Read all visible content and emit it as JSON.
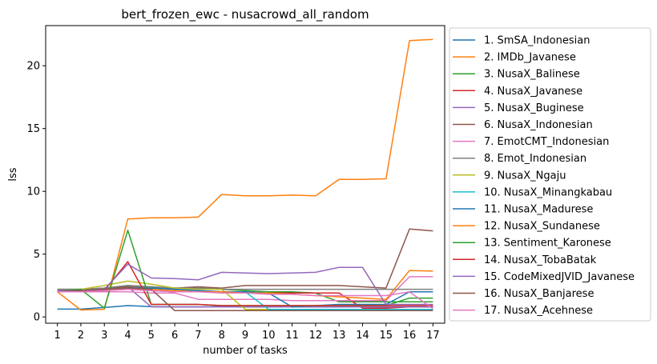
{
  "chart_data": {
    "type": "line",
    "title": "bert_frozen_ewc - nusacrowd_all_random",
    "xlabel": "number of tasks",
    "ylabel": "lss",
    "x": [
      1,
      2,
      3,
      4,
      5,
      6,
      7,
      8,
      9,
      10,
      11,
      12,
      13,
      14,
      15,
      16,
      17
    ],
    "xlim": [
      0.5,
      17.5
    ],
    "ylim": [
      -0.5,
      23.2
    ],
    "yticks": [
      0,
      5,
      10,
      15,
      20
    ],
    "legend_position": "outside-right",
    "series": [
      {
        "name": "1. SmSA_Indonesian",
        "color": "#1f77b4",
        "values": [
          0.62,
          0.62,
          0.75,
          0.9,
          0.82,
          0.8,
          0.8,
          0.82,
          0.8,
          0.8,
          0.82,
          0.8,
          0.8,
          0.82,
          0.8,
          0.8,
          0.8
        ]
      },
      {
        "name": "2. IMDb_Javanese",
        "color": "#ff7f0e",
        "values": [
          2.0,
          0.55,
          0.6,
          7.8,
          7.9,
          7.9,
          7.95,
          9.75,
          9.65,
          9.65,
          9.7,
          9.65,
          10.95,
          10.95,
          11.0,
          22.0,
          22.1
        ]
      },
      {
        "name": "3. NusaX_Balinese",
        "color": "#2ca02c",
        "values": [
          2.1,
          2.2,
          2.3,
          2.5,
          2.4,
          2.3,
          2.3,
          2.2,
          2.1,
          2.0,
          2.0,
          1.9,
          1.2,
          1.2,
          1.2,
          1.2,
          1.2
        ]
      },
      {
        "name": "4. NusaX_Javanese",
        "color": "#d62728",
        "values": [
          2.0,
          2.0,
          2.1,
          2.2,
          2.1,
          2.0,
          2.0,
          2.0,
          1.9,
          1.9,
          1.9,
          1.9,
          1.9,
          0.7,
          0.7,
          0.8,
          0.8
        ]
      },
      {
        "name": "5. NusaX_Buginese",
        "color": "#9467bd",
        "values": [
          2.1,
          2.1,
          2.2,
          2.4,
          0.8,
          0.8,
          0.8,
          0.8,
          0.8,
          0.8,
          0.8,
          0.8,
          0.8,
          0.8,
          0.8,
          0.8,
          0.8
        ]
      },
      {
        "name": "6. NusaX_Indonesian",
        "color": "#8c564b",
        "values": [
          2.2,
          2.2,
          2.3,
          2.4,
          2.3,
          2.3,
          2.4,
          2.3,
          2.5,
          2.5,
          2.5,
          2.5,
          2.5,
          2.4,
          2.3,
          7.0,
          6.85
        ]
      },
      {
        "name": "7. EmotCMT_Indonesian",
        "color": "#e377c2",
        "values": [
          2.0,
          2.0,
          2.0,
          2.0,
          1.9,
          1.9,
          1.4,
          1.4,
          1.4,
          1.4,
          1.3,
          1.3,
          1.3,
          1.3,
          1.3,
          3.2,
          3.2
        ]
      },
      {
        "name": "8. Emot_Indonesian",
        "color": "#7f7f7f",
        "values": [
          2.2,
          2.2,
          2.3,
          2.5,
          2.4,
          2.3,
          2.3,
          2.2,
          2.2,
          2.2,
          2.2,
          2.2,
          2.2,
          2.2,
          2.2,
          2.2,
          2.2
        ]
      },
      {
        "name": "9. NusaX_Ngaju",
        "color": "#bcbd22",
        "values": [
          2.1,
          2.2,
          2.5,
          2.85,
          2.6,
          2.3,
          2.2,
          2.2,
          0.6,
          0.6,
          0.6,
          0.6,
          0.6,
          0.6,
          0.6,
          0.6,
          0.6
        ]
      },
      {
        "name": "10. NusaX_Minangkabau",
        "color": "#17becf",
        "values": [
          2.0,
          2.1,
          2.2,
          2.3,
          2.3,
          2.2,
          2.1,
          2.0,
          2.0,
          0.6,
          0.6,
          0.6,
          0.6,
          0.6,
          0.6,
          0.6,
          0.6
        ]
      },
      {
        "name": "11. NusaX_Madurese",
        "color": "#1f77b4",
        "values": [
          2.0,
          2.1,
          2.2,
          2.3,
          2.3,
          2.2,
          2.1,
          2.0,
          2.0,
          1.9,
          0.8,
          0.9,
          1.0,
          1.0,
          1.0,
          2.0,
          2.0
        ]
      },
      {
        "name": "12. NusaX_Sundanese",
        "color": "#ff7f0e",
        "values": [
          2.0,
          2.1,
          2.2,
          2.3,
          2.2,
          2.1,
          2.0,
          2.0,
          1.9,
          1.9,
          1.8,
          1.7,
          1.6,
          1.5,
          1.4,
          3.7,
          3.65
        ]
      },
      {
        "name": "13. Sentiment_Karonese",
        "color": "#2ca02c",
        "values": [
          2.1,
          2.2,
          0.7,
          6.9,
          1.0,
          1.0,
          1.0,
          0.9,
          0.9,
          0.9,
          0.9,
          0.9,
          0.9,
          0.9,
          0.9,
          1.5,
          1.5
        ]
      },
      {
        "name": "14. NusaX_TobaBatak",
        "color": "#d62728",
        "values": [
          2.0,
          2.0,
          2.1,
          4.4,
          1.0,
          1.0,
          1.0,
          0.9,
          0.9,
          0.9,
          0.9,
          0.9,
          0.9,
          0.9,
          0.9,
          0.9,
          0.9
        ]
      },
      {
        "name": "15. CodeMixedJVID_Javanese",
        "color": "#9467bd",
        "values": [
          2.1,
          2.1,
          2.2,
          4.2,
          3.1,
          3.05,
          2.95,
          3.55,
          3.5,
          3.45,
          3.5,
          3.55,
          3.95,
          3.95,
          1.0,
          1.0,
          1.0
        ]
      },
      {
        "name": "16. NusaX_Banjarese",
        "color": "#8c564b",
        "values": [
          2.0,
          2.1,
          2.2,
          2.3,
          2.2,
          0.5,
          0.5,
          0.5,
          0.5,
          0.5,
          0.5,
          0.5,
          0.5,
          0.5,
          0.5,
          0.5,
          0.5
        ]
      },
      {
        "name": "17. NusaX_Acehnese",
        "color": "#e377c2",
        "values": [
          2.0,
          2.0,
          2.1,
          2.2,
          2.1,
          2.0,
          2.0,
          1.9,
          1.9,
          1.8,
          1.8,
          1.7,
          1.7,
          1.7,
          1.7,
          2.0,
          0.65
        ]
      }
    ]
  }
}
